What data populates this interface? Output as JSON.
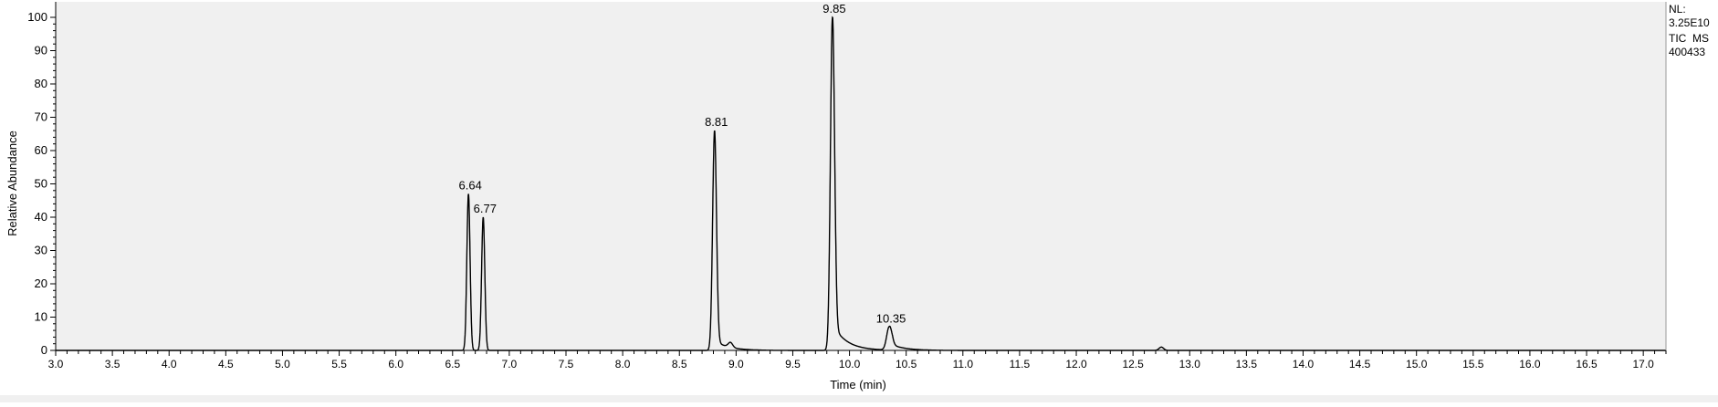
{
  "chart_data": {
    "type": "line",
    "title": "",
    "xlabel": "Time (min)",
    "ylabel": "Relative Abundance",
    "xlim": [
      3.0,
      17.2
    ],
    "ylim": [
      0,
      100
    ],
    "x_ticks": [
      "3.0",
      "3.5",
      "4.0",
      "4.5",
      "5.0",
      "5.5",
      "6.0",
      "6.5",
      "7.0",
      "7.5",
      "8.0",
      "8.5",
      "9.0",
      "9.5",
      "10.0",
      "10.5",
      "11.0",
      "11.5",
      "12.0",
      "12.5",
      "13.0",
      "13.5",
      "14.0",
      "14.5",
      "15.0",
      "15.5",
      "16.0",
      "16.5",
      "17.0"
    ],
    "y_ticks": [
      "0",
      "10",
      "20",
      "30",
      "40",
      "50",
      "60",
      "70",
      "80",
      "90",
      "100"
    ],
    "legend": [
      "NL:",
      "3.25E10",
      "TIC  MS",
      "400433"
    ],
    "peaks": [
      {
        "label": "6.64",
        "rt": 6.64,
        "height": 47,
        "width": 0.014,
        "tail": 0
      },
      {
        "label": "6.77",
        "rt": 6.77,
        "height": 40,
        "width": 0.014,
        "tail": 0
      },
      {
        "label": "8.81",
        "rt": 8.81,
        "height": 66,
        "width": 0.017,
        "tail": 3
      },
      {
        "label": "9.85",
        "rt": 9.85,
        "height": 100,
        "width": 0.018,
        "tail": 8
      },
      {
        "label": "10.35",
        "rt": 10.35,
        "height": 7,
        "width": 0.022,
        "tail": 2
      }
    ],
    "minor_peaks": [
      {
        "rt": 8.95,
        "height": 1.5
      },
      {
        "rt": 12.75,
        "height": 1
      }
    ]
  }
}
